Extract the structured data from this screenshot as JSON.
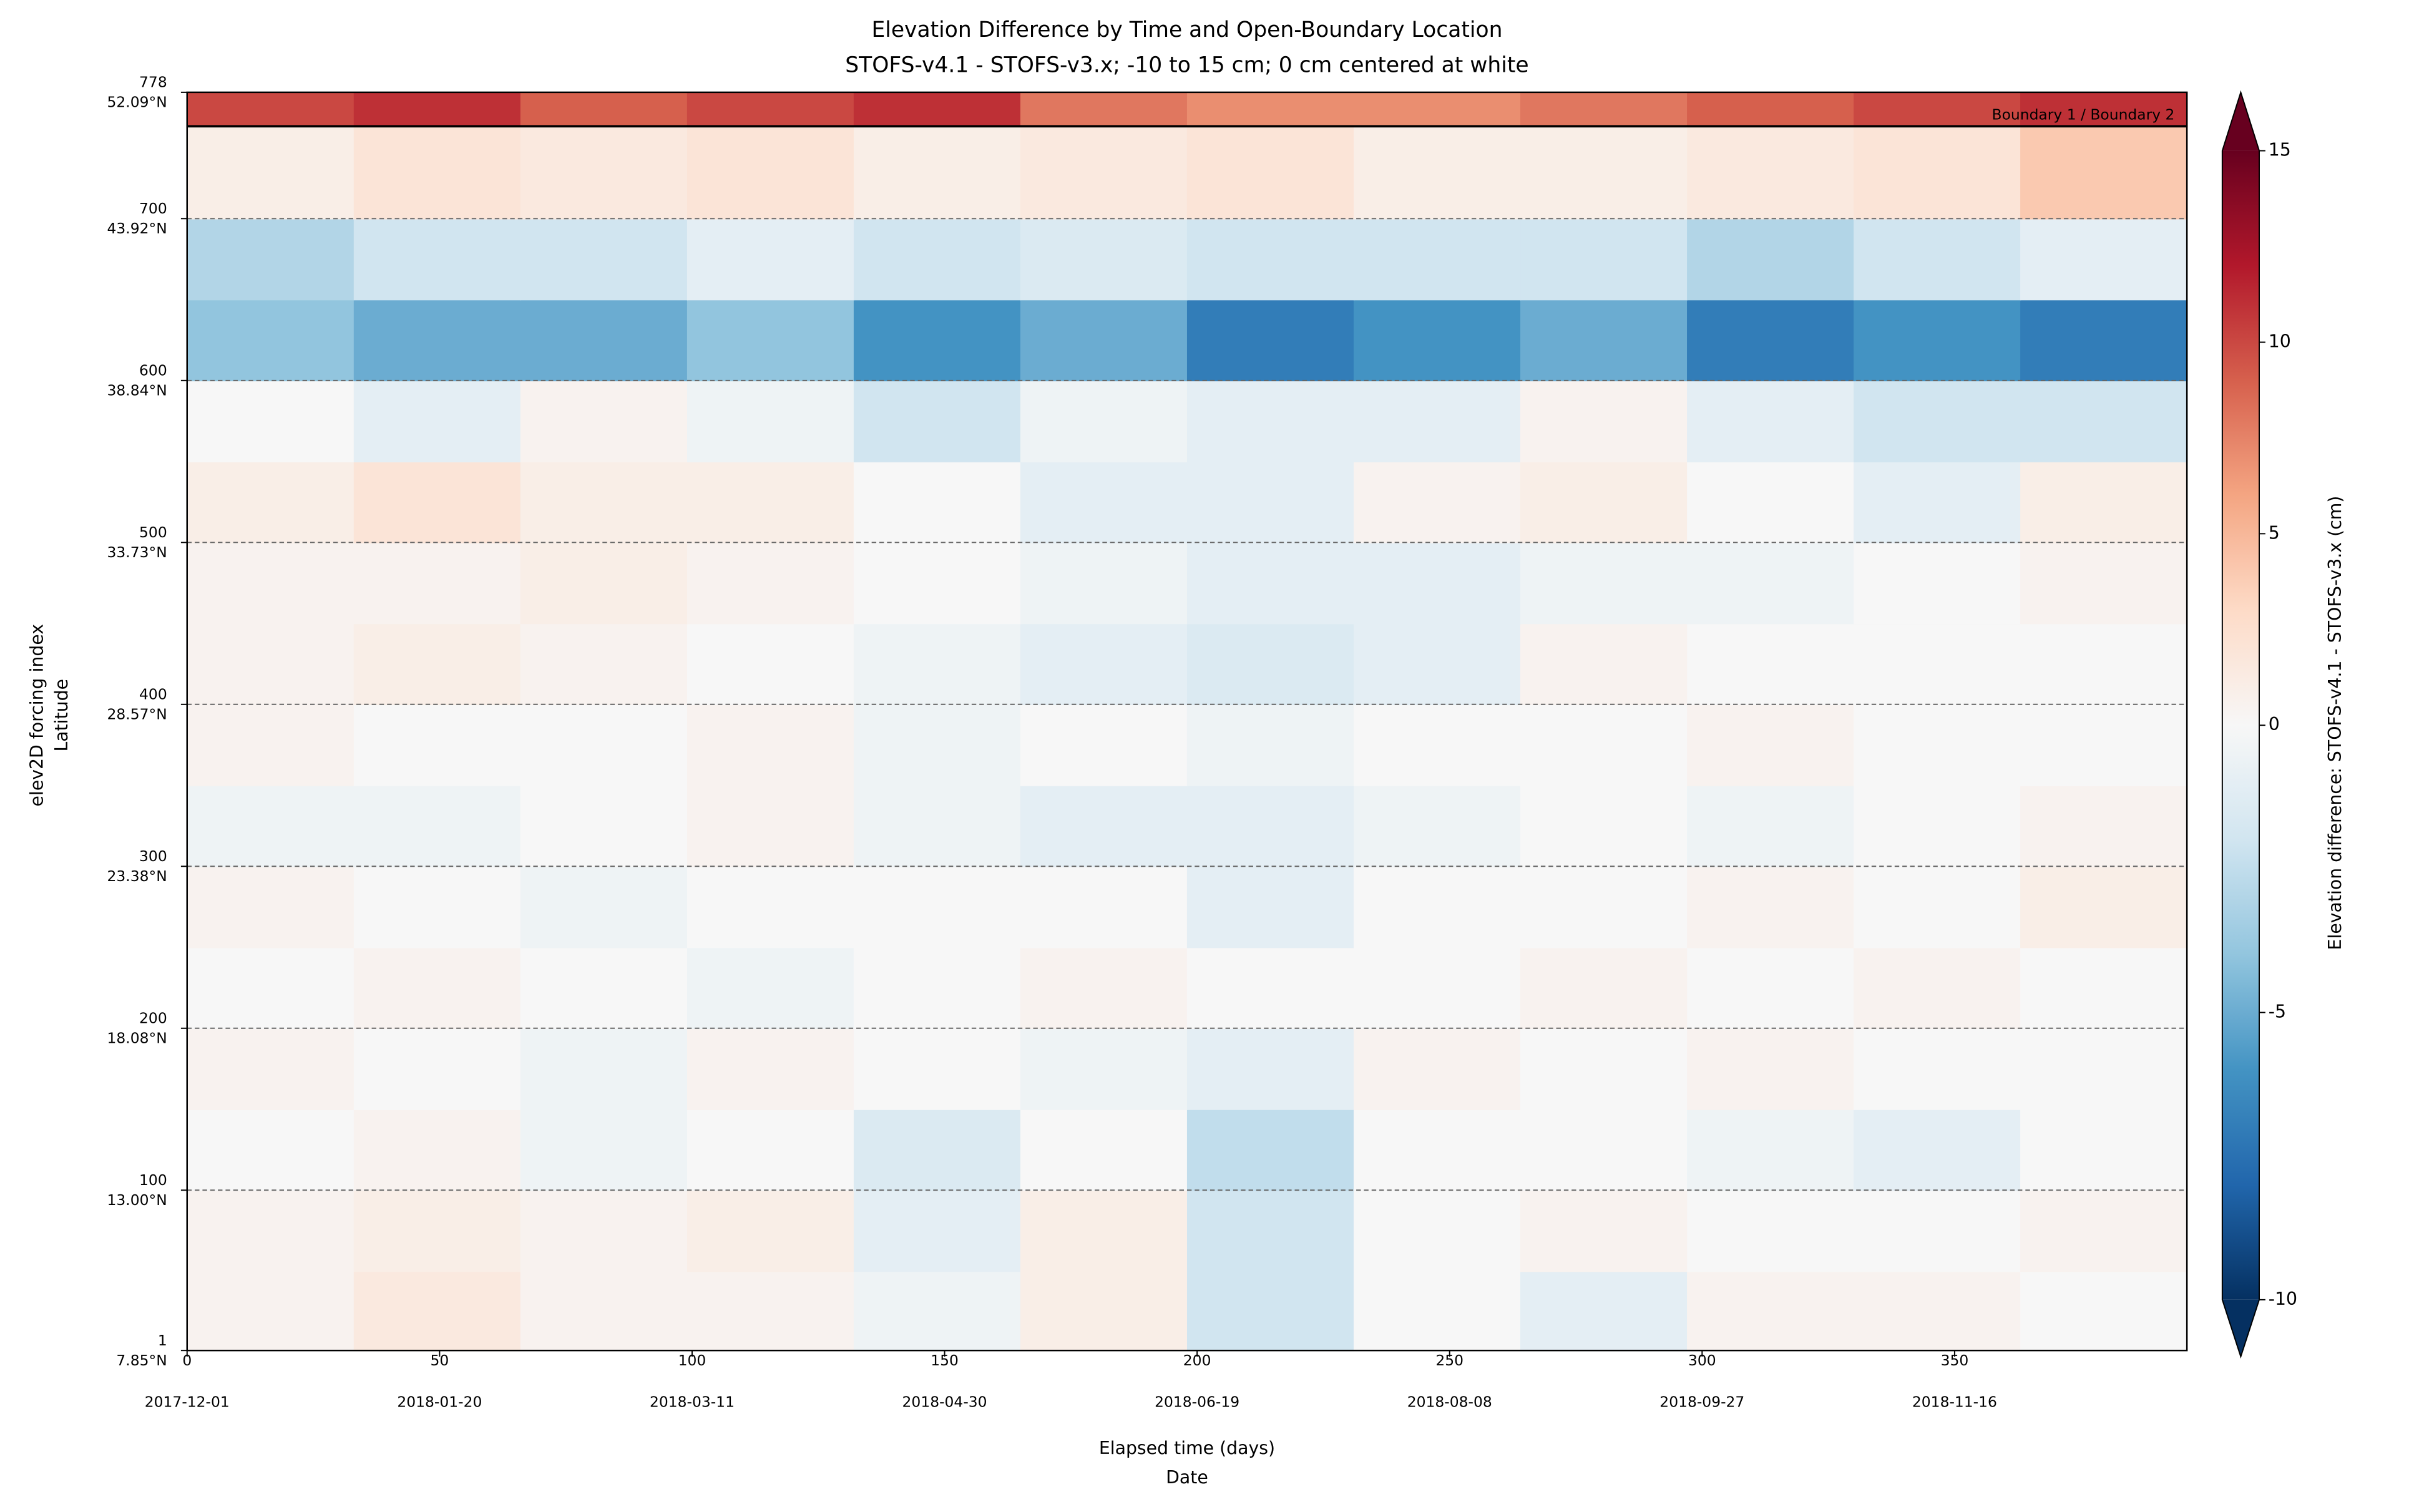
{
  "chart_data": {
    "type": "heatmap",
    "title": "Elevation Difference by Time and Open-Boundary Location",
    "subtitle": "STOFS-v4.1 - STOFS-v3.x; -10 to 15 cm; 0 cm centered at white",
    "xlabel": "Elapsed time (days)",
    "xlabel2": "Date",
    "ylabel": "elev2D forcing index",
    "ylabel2": "Latitude",
    "colorbar_label": "Elevation difference: STOFS-v4.1 - STOFS-v3.x (cm)",
    "annotation": "Boundary 1 / Boundary 2",
    "boundary_index": 757,
    "colormap": "RdBu_r",
    "clim": [
      -10,
      15
    ],
    "vcenter": 0,
    "cticks": [
      -10,
      -5,
      0,
      5,
      10,
      15
    ],
    "xlim": [
      0,
      396
    ],
    "xticks": [
      0,
      50,
      100,
      150,
      200,
      250,
      300,
      350
    ],
    "xtick_dates": [
      "2017-12-01",
      "2018-01-20",
      "2018-03-11",
      "2018-04-30",
      "2018-06-19",
      "2018-08-08",
      "2018-09-27",
      "2018-11-16"
    ],
    "ylim": [
      1,
      778
    ],
    "yticks": [
      1,
      100,
      200,
      300,
      400,
      500,
      600,
      700,
      778
    ],
    "ytick_latitudes": [
      "7.85°N",
      "13.00°N",
      "18.08°N",
      "23.38°N",
      "28.57°N",
      "33.73°N",
      "38.84°N",
      "43.92°N",
      "52.09°N"
    ],
    "grid": true,
    "x_edges": [
      0,
      33,
      66,
      99,
      132,
      165,
      198,
      231,
      264,
      297,
      330,
      363,
      396
    ],
    "y_edges": [
      1,
      50,
      100,
      150,
      200,
      250,
      300,
      350,
      400,
      450,
      500,
      550,
      600,
      650,
      700,
      757,
      778
    ],
    "z": [
      [
        0.5,
        1.5,
        0.5,
        0.5,
        -0.5,
        1,
        -2,
        0,
        -1,
        0.5,
        0.5,
        0
      ],
      [
        0.5,
        1,
        0.5,
        1,
        -1,
        1,
        -2,
        0,
        0.5,
        0,
        0,
        0.5
      ],
      [
        0,
        0.5,
        -0.5,
        0,
        -1.5,
        0,
        -2.5,
        0,
        0,
        -0.5,
        -1,
        0
      ],
      [
        0.5,
        0,
        -0.5,
        0.5,
        0,
        -0.5,
        -1,
        0.5,
        0,
        0.5,
        0,
        0
      ],
      [
        0,
        0.5,
        0,
        -0.5,
        0,
        0.5,
        0,
        0,
        0.5,
        0,
        0.5,
        0
      ],
      [
        0.5,
        0,
        -0.5,
        0,
        0,
        0,
        -1,
        0,
        0,
        0.5,
        0,
        1
      ],
      [
        -0.5,
        -0.5,
        0,
        0.5,
        -0.5,
        -1,
        -1,
        -0.5,
        0,
        -0.5,
        0,
        0.5
      ],
      [
        0.5,
        0,
        0,
        0.5,
        -0.5,
        0,
        -0.5,
        0,
        0,
        0.5,
        0,
        0
      ],
      [
        0.5,
        1,
        0.5,
        0,
        -0.5,
        -1,
        -1.5,
        -1,
        0.5,
        0,
        0,
        0
      ],
      [
        0.5,
        0.5,
        1,
        0.5,
        0,
        -0.5,
        -1,
        -1,
        -0.5,
        -0.5,
        0,
        0.5
      ],
      [
        1,
        2,
        1,
        1,
        0,
        -1,
        -1,
        0.5,
        1,
        0,
        -1,
        1
      ],
      [
        0,
        -1,
        0.5,
        -0.5,
        -2,
        -0.5,
        -1,
        -1,
        0.5,
        -1,
        -2,
        -2
      ],
      [
        -4,
        -5,
        -5,
        -4,
        -6,
        -5,
        -7,
        -6,
        -5,
        -7,
        -6,
        -7
      ],
      [
        -3,
        -2,
        -2,
        -1,
        -2,
        -1.5,
        -2,
        -2,
        -2,
        -3,
        -2,
        -1
      ],
      [
        1,
        2,
        1.5,
        2,
        1,
        1.5,
        2,
        1,
        1,
        1.5,
        2,
        4
      ],
      [
        10,
        11,
        9,
        10,
        11,
        8,
        7,
        7,
        8,
        9,
        10,
        11
      ]
    ]
  }
}
